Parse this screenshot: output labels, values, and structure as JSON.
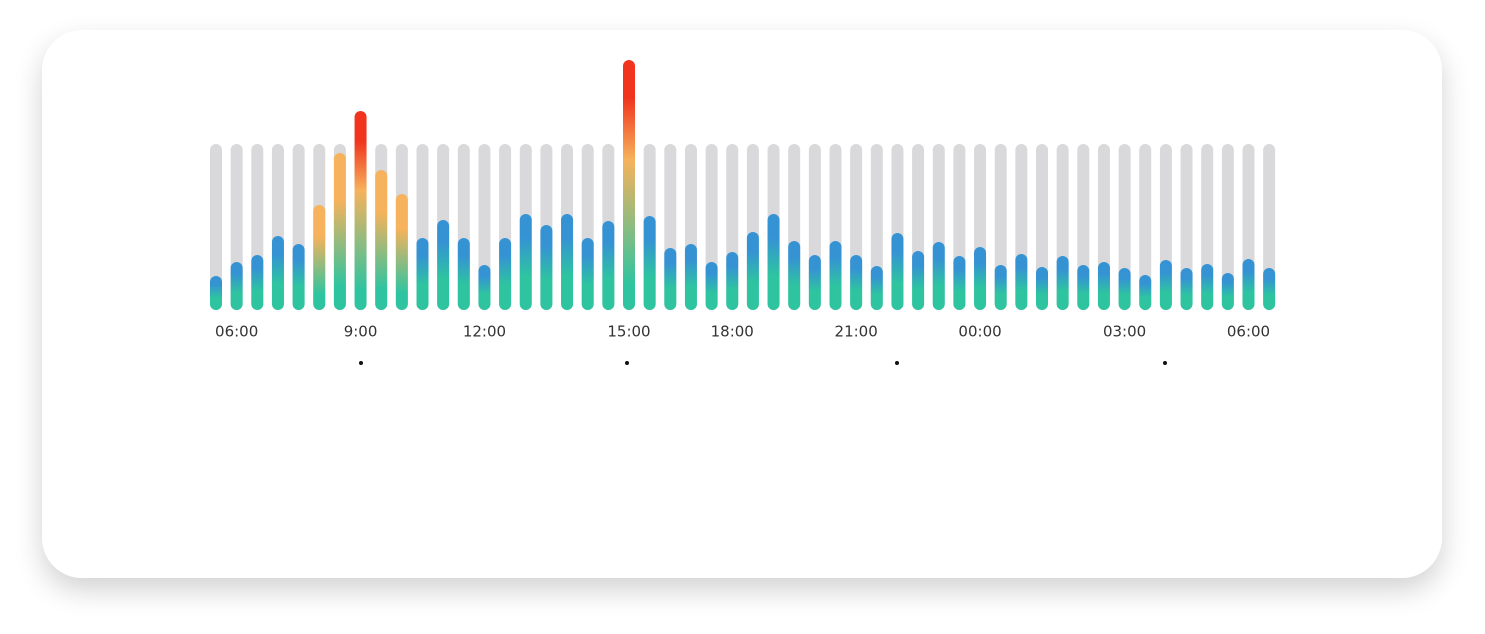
{
  "chart_data": {
    "type": "bar",
    "categories": [
      null,
      "06:00",
      null,
      null,
      null,
      null,
      null,
      "9:00",
      null,
      null,
      null,
      null,
      null,
      "12:00",
      null,
      null,
      null,
      null,
      null,
      null,
      "15:00",
      null,
      null,
      null,
      null,
      "18:00",
      null,
      null,
      null,
      null,
      null,
      "21:00",
      null,
      null,
      null,
      null,
      null,
      "00:00",
      null,
      null,
      null,
      null,
      null,
      null,
      "03:00",
      null,
      null,
      null,
      null,
      null,
      "06:00",
      null
    ],
    "values": [
      34,
      48,
      55,
      74,
      66,
      105,
      157,
      199,
      140,
      116,
      72,
      90,
      72,
      45,
      72,
      96,
      85,
      96,
      72,
      89,
      250,
      94,
      62,
      66,
      48,
      58,
      78,
      96,
      69,
      55,
      69,
      55,
      44,
      77,
      59,
      68,
      54,
      63,
      45,
      56,
      43,
      54,
      45,
      48,
      42,
      35,
      50,
      42,
      46,
      37,
      51,
      42
    ],
    "ylim": [
      0,
      250
    ],
    "colors": {
      "base": "#2ec4a0",
      "normal": "#3593d3",
      "warm": "#f6b25c",
      "hot": "#f0341e",
      "track": "#d9d9db"
    }
  }
}
